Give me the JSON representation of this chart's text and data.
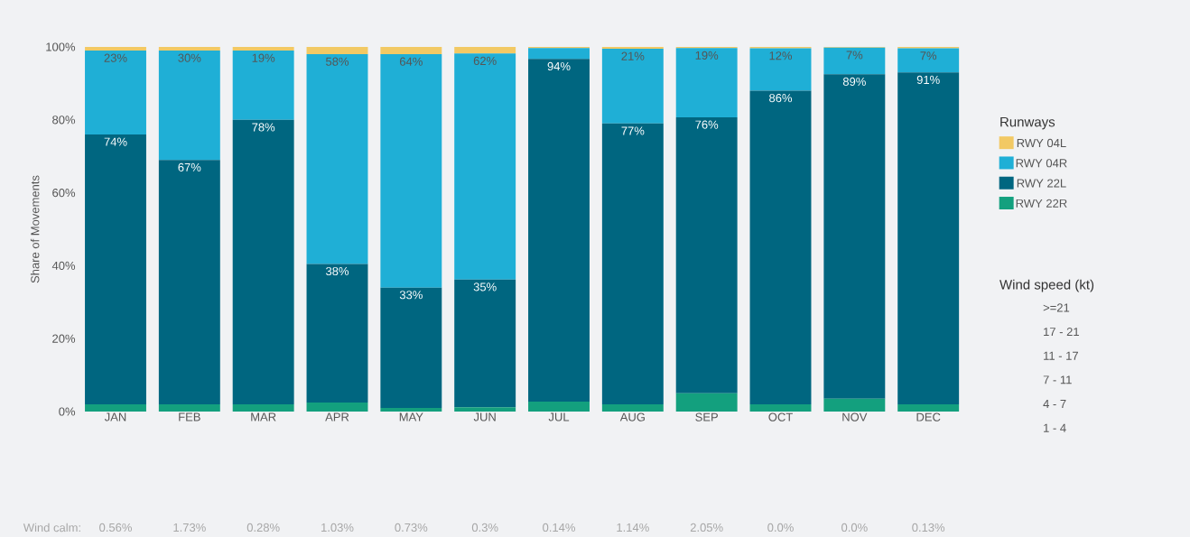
{
  "chart_data": {
    "type": "bar",
    "stacked": true,
    "ylabel": "Share of Movements",
    "legend_title": "Runways",
    "legend": "right",
    "categories": [
      "JAN",
      "FEB",
      "MAR",
      "APR",
      "MAY",
      "JUN",
      "JUL",
      "AUG",
      "SEP",
      "OCT",
      "NOV",
      "DEC"
    ],
    "series": [
      {
        "name": "RWY 22R",
        "color": "#13a07e",
        "values": [
          2,
          2,
          2,
          2.5,
          1,
          1.2,
          2.7,
          2,
          5,
          2,
          3.5,
          2
        ]
      },
      {
        "name": "RWY 22L",
        "color": "#006680",
        "values": [
          74,
          67,
          78,
          38,
          33,
          35,
          94,
          77,
          75.7,
          86,
          89,
          91
        ],
        "value_labels": [
          "74%",
          "67%",
          "78%",
          "38%",
          "33%",
          "35%",
          "94%",
          "77%",
          "76%",
          "86%",
          "89%",
          "91%"
        ]
      },
      {
        "name": "RWY 04R",
        "color": "#1fafd6",
        "values": [
          23,
          30,
          19,
          57.5,
          64,
          62,
          3,
          20.5,
          19,
          11.6,
          7.3,
          6.6
        ],
        "value_labels": [
          "23%",
          "30%",
          "19%",
          "58%",
          "64%",
          "62%",
          null,
          "21%",
          "19%",
          "12%",
          "7%",
          "7%"
        ]
      },
      {
        "name": "RWY 04L",
        "color": "#f2c964",
        "values": [
          1,
          1,
          1,
          2,
          2,
          1.8,
          0.3,
          0.5,
          0.3,
          0.4,
          0.2,
          0.4
        ]
      }
    ],
    "ylim": [
      0,
      100
    ],
    "yticks": [
      {
        "value": 0,
        "label": "0%"
      },
      {
        "value": 20,
        "label": "20%"
      },
      {
        "value": 40,
        "label": "40%"
      },
      {
        "value": 60,
        "label": "60%"
      },
      {
        "value": 80,
        "label": "80%"
      },
      {
        "value": 100,
        "label": "100%"
      }
    ],
    "annotations": [
      "Wind calm:",
      "0.56%",
      "1.73%",
      "0.28%",
      "1.03%",
      "0.73%",
      "0.3%",
      "0.14%",
      "1.14%",
      "2.05%",
      "0.0%",
      "0.0%",
      "0.13%",
      "Wind speed (kt)",
      ">=21",
      "17 - 21",
      "11 - 17",
      "7 - 11",
      "4 - 7",
      "1 - 4"
    ]
  }
}
